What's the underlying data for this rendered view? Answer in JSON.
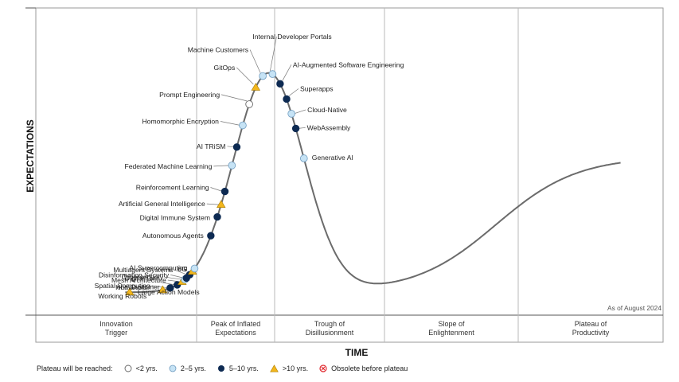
{
  "chart_data": {
    "type": "hype-cycle",
    "y_label": "EXPECTATIONS",
    "x_label": "TIME",
    "as_of": "As of August 2024",
    "phases": [
      [
        "Innovation",
        "Trigger"
      ],
      [
        "Peak of Inflated",
        "Expectations"
      ],
      [
        "Trough of",
        "Disillusionment"
      ],
      [
        "Slope of",
        "Enlightenment"
      ],
      [
        "Plateau of",
        "Productivity"
      ]
    ],
    "category_colors": {
      "lt2": "#ffffff",
      "2to5": "#c6e3f5",
      "5to10": "#0d2a52",
      "gt10": "#f2b61c",
      "obsolete": "#e0282e"
    },
    "technologies": [
      {
        "name": "Large Action Models",
        "t": 0.063,
        "category": "gt10"
      },
      {
        "name": "Humanoid Working Robots",
        "t": 0.124,
        "category": "gt10"
      },
      {
        "name": "Spatial Computing",
        "t": 0.138,
        "category": "5to10"
      },
      {
        "name": "Digital Twin of a Customer",
        "t": 0.151,
        "category": "5to10"
      },
      {
        "name": "Mesh Architecture",
        "t": 0.16,
        "category": "gt10"
      },
      {
        "name": "Cybersecurity",
        "t": 0.165,
        "category": "2to5"
      },
      {
        "name": "Disinformation Security",
        "t": 0.168,
        "category": "5to10"
      },
      {
        "name": "Multiagent Systems",
        "t": 0.174,
        "category": "5to10"
      },
      {
        "name": "6G",
        "t": 0.179,
        "category": "gt10"
      },
      {
        "name": "AI Supercomputing",
        "t": 0.183,
        "category": "2to5"
      },
      {
        "name": "Autonomous Agents",
        "t": 0.213,
        "category": "5to10"
      },
      {
        "name": "Digital Immune System",
        "t": 0.225,
        "category": "5to10"
      },
      {
        "name": "Artificial General Intelligence",
        "t": 0.232,
        "category": "gt10"
      },
      {
        "name": "Reinforcement Learning",
        "t": 0.239,
        "category": "5to10"
      },
      {
        "name": "Federated Machine Learning",
        "t": 0.252,
        "category": "2to5"
      },
      {
        "name": "AI TRiSM",
        "t": 0.261,
        "category": "5to10"
      },
      {
        "name": "Homomorphic Encryption",
        "t": 0.272,
        "category": "2to5"
      },
      {
        "name": "Prompt Engineering",
        "t": 0.284,
        "category": "lt2"
      },
      {
        "name": "GitOps",
        "t": 0.296,
        "category": "gt10"
      },
      {
        "name": "Machine Customers",
        "t": 0.309,
        "category": "2to5"
      },
      {
        "name": "Internal Developer Portals",
        "t": 0.327,
        "category": "2to5"
      },
      {
        "name": "AI-Augmented Software Engineering",
        "t": 0.341,
        "category": "5to10"
      },
      {
        "name": "Superapps",
        "t": 0.353,
        "category": "5to10"
      },
      {
        "name": "Cloud-Native",
        "t": 0.362,
        "category": "2to5"
      },
      {
        "name": "WebAssembly",
        "t": 0.37,
        "category": "5to10"
      },
      {
        "name": "Generative AI",
        "t": 0.385,
        "category": "2to5"
      }
    ]
  },
  "labels": {
    "Large Action Models": [
      "Large Action Models"
    ],
    "Humanoid Working Robots": [
      "Humanoid",
      "Working Robots"
    ],
    "Spatial Computing": [
      "Spatial Computing"
    ],
    "Digital Twin of a Customer": [
      "Digital Twin",
      "of a Customer"
    ],
    "Mesh Architecture": [
      "Mesh Architecture"
    ],
    "Cybersecurity": [
      "Cybersecurity"
    ],
    "Disinformation Security": [
      "Disinformation Security"
    ],
    "Multiagent Systems": [
      "Multiagent Systems"
    ],
    "6G": [
      "6G"
    ],
    "AI Supercomputing": [
      "AI Supercomputing"
    ],
    "Autonomous Agents": [
      "Autonomous Agents"
    ],
    "Digital Immune System": [
      "Digital Immune System"
    ],
    "Artificial General Intelligence": [
      "Artificial General Intelligence"
    ],
    "Reinforcement Learning": [
      "Reinforcement Learning"
    ],
    "Federated Machine Learning": [
      "Federated Machine Learning"
    ],
    "AI TRiSM": [
      "AI TRiSM"
    ],
    "Homomorphic Encryption": [
      "Homomorphic Encryption"
    ],
    "Prompt Engineering": [
      "Prompt Engineering"
    ],
    "GitOps": [
      "GitOps"
    ],
    "Machine Customers": [
      "Machine Customers"
    ],
    "Internal Developer Portals": [
      "Internal Developer Portals"
    ],
    "AI-Augmented Software Engineering": [
      "AI-Augmented Software Engineering"
    ],
    "Superapps": [
      "Superapps"
    ],
    "Cloud-Native": [
      "Cloud-Native"
    ],
    "WebAssembly": [
      "WebAssembly"
    ],
    "Generative AI": [
      "Generative AI"
    ]
  },
  "legend": {
    "title": "Plateau will be reached:",
    "items": [
      {
        "label": "<2 yrs.",
        "icon": "open-circle-icon"
      },
      {
        "label": "2–5 yrs.",
        "icon": "light-blue-circle-icon"
      },
      {
        "label": "5–10 yrs.",
        "icon": "navy-circle-icon"
      },
      {
        "label": ">10 yrs.",
        "icon": "yellow-triangle-icon"
      },
      {
        "label": "Obsolete before plateau",
        "icon": "red-x-circle-icon"
      }
    ]
  }
}
